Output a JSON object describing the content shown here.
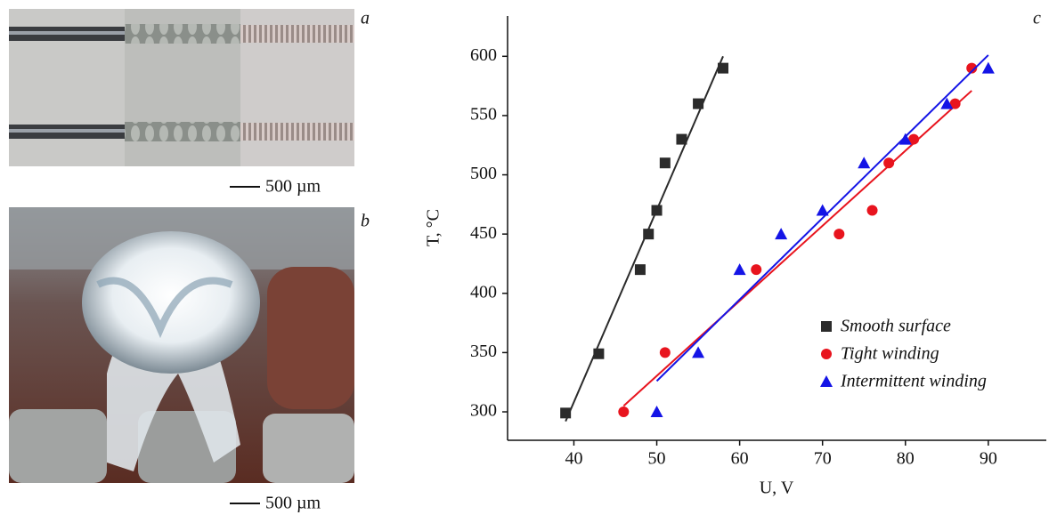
{
  "panels": {
    "a": {
      "label": "a",
      "scale": "500 µm"
    },
    "b": {
      "label": "b",
      "scale": "500 µm"
    }
  },
  "chart_data": {
    "type": "scatter",
    "panel_label": "c",
    "xlabel": "U, V",
    "ylabel": "T, °C",
    "xlim": [
      32,
      97
    ],
    "ylim": [
      276,
      634
    ],
    "xticks": [
      40,
      50,
      60,
      70,
      80,
      90
    ],
    "yticks": [
      300,
      350,
      400,
      450,
      500,
      550,
      600
    ],
    "legend": "lower right",
    "series": [
      {
        "name": "Smooth surface",
        "color": "#2b2b2b",
        "marker": "square",
        "x": [
          39,
          43,
          48,
          49,
          50,
          51,
          53,
          55,
          58
        ],
        "values": [
          299,
          349,
          420,
          450,
          470,
          510,
          530,
          560,
          590
        ],
        "fit_x": [
          39,
          58
        ],
        "fit_values": [
          292,
          600
        ]
      },
      {
        "name": "Tight winding",
        "color": "#e8141e",
        "marker": "circle",
        "x": [
          46,
          51,
          62,
          72,
          76,
          78,
          81,
          86,
          88
        ],
        "values": [
          300,
          350,
          420,
          450,
          470,
          510,
          530,
          560,
          590
        ],
        "fit_x": [
          46,
          88
        ],
        "fit_values": [
          305,
          571
        ]
      },
      {
        "name": "Intermittent winding",
        "color": "#1414e6",
        "marker": "triangle",
        "x": [
          50,
          55,
          60,
          65,
          70,
          75,
          80,
          85,
          90
        ],
        "values": [
          300,
          350,
          420,
          450,
          470,
          510,
          530,
          560,
          590
        ],
        "fit_x": [
          50,
          90
        ],
        "fit_values": [
          326,
          601
        ]
      }
    ]
  }
}
